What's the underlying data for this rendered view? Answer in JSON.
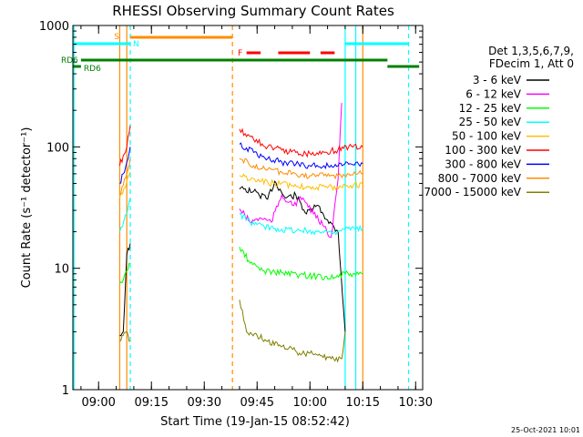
{
  "chart_data": {
    "type": "line",
    "title": "RHESSI Observing Summary Count Rates",
    "xlabel": "Start Time (19-Jan-15 08:52:42)",
    "ylabel": "Count Rate (s⁻¹ detector⁻¹)",
    "ylim": [
      1,
      1000
    ],
    "y_scale": "log",
    "x_range": [
      "08:52:42",
      "10:32:00"
    ],
    "x_ticks": [
      "09:00",
      "09:15",
      "09:30",
      "09:45",
      "10:00",
      "10:15",
      "10:30"
    ],
    "y_ticks": [
      "1",
      "10",
      "100",
      "1000"
    ],
    "legend_header": [
      "Det 1,3,5,6,7,9,",
      "FDecim 1, Att 0"
    ],
    "legend_position": "right",
    "series": [
      {
        "name": "3 - 6 keV",
        "color": "#000000",
        "x": [
          "09:06",
          "09:07",
          "09:08",
          "09:09",
          "09:40",
          "09:44",
          "09:48",
          "09:50",
          "09:53",
          "09:56",
          "09:59",
          "10:02",
          "10:05",
          "10:08",
          "10:10"
        ],
        "y": [
          2.8,
          3.0,
          13,
          16,
          45,
          43,
          37,
          52,
          38,
          40,
          28,
          33,
          25,
          20,
          3
        ]
      },
      {
        "name": "6 - 12 keV",
        "color": "#ff00ff",
        "x": [
          "09:40",
          "09:43",
          "09:46",
          "09:49",
          "09:52",
          "09:55",
          "09:58",
          "10:01",
          "10:04",
          "10:06",
          "10:08",
          "10:09"
        ],
        "y": [
          31,
          24,
          26,
          24,
          40,
          33,
          38,
          28,
          22,
          18,
          55,
          230
        ]
      },
      {
        "name": "12 - 25 keV",
        "color": "#00ff00",
        "x": [
          "09:06",
          "09:07",
          "09:08",
          "09:09",
          "09:40",
          "09:43",
          "09:47",
          "09:52",
          "09:57",
          "10:02",
          "10:07",
          "10:10",
          "10:13",
          "10:15"
        ],
        "y": [
          7.5,
          8.0,
          9.5,
          11,
          15,
          11,
          9.5,
          9.2,
          8.8,
          8.6,
          8.4,
          9.0,
          8.8,
          9.0
        ]
      },
      {
        "name": "25 - 50 keV",
        "color": "#00ffff",
        "x": [
          "09:06",
          "09:08",
          "09:09",
          "09:40",
          "09:43",
          "09:47",
          "09:52",
          "09:57",
          "10:02",
          "10:07",
          "10:10",
          "10:13",
          "10:15"
        ],
        "y": [
          20,
          28,
          38,
          28,
          24,
          22,
          21,
          20.5,
          20,
          20,
          21,
          21,
          21
        ]
      },
      {
        "name": "50 - 100 keV",
        "color": "#ffbf00",
        "x": [
          "09:06",
          "09:08",
          "09:09",
          "09:40",
          "09:45",
          "09:50",
          "09:55",
          "10:00",
          "10:05",
          "10:10",
          "10:15"
        ],
        "y": [
          38,
          52,
          62,
          58,
          52,
          50,
          48,
          47,
          46,
          48,
          49
        ]
      },
      {
        "name": "100 - 300 keV",
        "color": "#ff0000",
        "x": [
          "09:06",
          "09:07",
          "09:08",
          "09:09",
          "09:40",
          "09:44",
          "09:48",
          "09:52",
          "09:56",
          "10:00",
          "10:04",
          "10:08",
          "10:11",
          "10:15"
        ],
        "y": [
          70,
          85,
          100,
          150,
          140,
          115,
          100,
          94,
          90,
          88,
          90,
          95,
          100,
          100
        ]
      },
      {
        "name": "300 - 800 keV",
        "color": "#0000ff",
        "x": [
          "09:06",
          "09:07",
          "09:08",
          "09:09",
          "09:40",
          "09:44",
          "09:48",
          "09:52",
          "09:56",
          "10:00",
          "10:04",
          "10:08",
          "10:11",
          "10:15"
        ],
        "y": [
          50,
          60,
          75,
          100,
          105,
          90,
          80,
          75,
          72,
          70,
          70,
          70,
          72,
          73
        ]
      },
      {
        "name": "800 - 7000 keV",
        "color": "#ff8c00",
        "x": [
          "09:06",
          "09:07",
          "09:08",
          "09:09",
          "09:40",
          "09:44",
          "09:48",
          "09:52",
          "09:56",
          "10:00",
          "10:04",
          "10:08",
          "10:11",
          "10:15"
        ],
        "y": [
          40,
          48,
          60,
          80,
          80,
          70,
          65,
          62,
          60,
          58,
          58,
          58,
          60,
          60
        ]
      },
      {
        "name": "7000 - 15000 keV",
        "color": "#808000",
        "x": [
          "09:06",
          "09:07",
          "09:08",
          "09:09",
          "09:40",
          "09:42",
          "09:45",
          "09:48",
          "09:51",
          "09:54",
          "09:57",
          "10:00",
          "10:03",
          "10:06",
          "10:09",
          "10:10"
        ],
        "y": [
          2.5,
          2.8,
          3.0,
          2.5,
          5.5,
          3.0,
          2.8,
          2.5,
          2.3,
          2.2,
          2.0,
          2.0,
          1.9,
          1.8,
          1.8,
          3.0
        ]
      }
    ],
    "annotations": [
      {
        "text": "S",
        "color": "#ff8c00",
        "x": "09:07"
      },
      {
        "text": "N",
        "color": "#00ffff",
        "x": "09:09"
      },
      {
        "text": "F",
        "color": "#ff0000",
        "x": "09:39"
      },
      {
        "text": "RD6",
        "color": "#008000",
        "x": "08:52:42"
      },
      {
        "text": "RD6",
        "color": "#008000",
        "x": "08:55"
      }
    ],
    "intervals": [
      {
        "kind": "saa",
        "color": "#00ffff",
        "segments": [
          [
            "08:52:42",
            "09:09"
          ],
          [
            "10:10",
            "10:28"
          ]
        ]
      },
      {
        "kind": "shadow",
        "color": "#ff8c00",
        "segments": [
          [
            "09:09",
            "09:38"
          ]
        ]
      },
      {
        "kind": "flare",
        "color": "#ff0000",
        "segments": [
          [
            "09:42",
            "09:46"
          ],
          [
            "09:51",
            "10:00"
          ],
          [
            "10:03",
            "10:07"
          ]
        ]
      },
      {
        "kind": "rd6",
        "color": "#008000",
        "segments": [
          [
            "08:55",
            "10:22"
          ]
        ]
      },
      {
        "kind": "rd6-lower",
        "color": "#008000",
        "segments": [
          [
            "08:52:42",
            "08:55"
          ],
          [
            "10:22",
            "10:31"
          ]
        ]
      }
    ],
    "vlines": [
      {
        "x": "08:53",
        "color": "#00ffff",
        "style": "solid"
      },
      {
        "x": "09:06",
        "color": "#ff8c00",
        "style": "solid"
      },
      {
        "x": "09:08",
        "color": "#ff8c00",
        "style": "solid"
      },
      {
        "x": "09:09",
        "color": "#00ffff",
        "style": "dashed"
      },
      {
        "x": "09:38",
        "color": "#ff8c00",
        "style": "dashed"
      },
      {
        "x": "10:10",
        "color": "#00ffff",
        "style": "solid"
      },
      {
        "x": "10:15",
        "color": "#ff8c00",
        "style": "solid"
      },
      {
        "x": "10:13",
        "color": "#00ffff",
        "style": "solid"
      },
      {
        "x": "10:28",
        "color": "#00ffff",
        "style": "dashed"
      }
    ],
    "grid": false
  },
  "footer": {
    "timestamp": "25-Oct-2021 10:01"
  }
}
